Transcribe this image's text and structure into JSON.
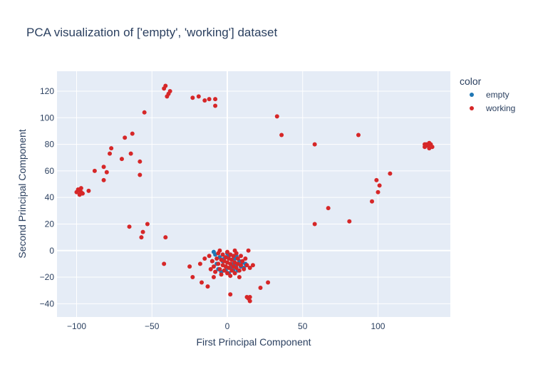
{
  "chart_data": {
    "type": "scatter",
    "title": "PCA visualization of ['empty', 'working'] dataset",
    "xlabel": "First Principal Component",
    "ylabel": "Second Principal Component",
    "xlim": [
      -113,
      148
    ],
    "ylim": [
      -50,
      135
    ],
    "xticks": [
      -100,
      -50,
      0,
      50,
      100
    ],
    "xtick_labels": [
      "−100",
      "−50",
      "0",
      "50",
      "100"
    ],
    "yticks": [
      -40,
      -20,
      0,
      20,
      40,
      60,
      80,
      100,
      120
    ],
    "ytick_labels": [
      "−40",
      "−20",
      "0",
      "20",
      "40",
      "60",
      "80",
      "100",
      "120"
    ],
    "grid": true,
    "legend": {
      "title": "color",
      "placement": "right"
    },
    "colors": {
      "plot_bg": "#e5ecf6",
      "grid": "#ffffff",
      "text": "#2a3f5f"
    },
    "series": [
      {
        "name": "empty",
        "color": "#1f77b4",
        "points": [
          [
            -9,
            -1
          ],
          [
            -8,
            -3
          ],
          [
            -5,
            -5
          ],
          [
            -3,
            -8
          ],
          [
            -1,
            -12
          ],
          [
            0,
            -9
          ],
          [
            1,
            -4
          ],
          [
            2,
            -13
          ],
          [
            3,
            -7
          ],
          [
            4,
            -10
          ],
          [
            5,
            -6
          ],
          [
            6,
            -11
          ],
          [
            7,
            -15
          ],
          [
            8,
            -8
          ],
          [
            9,
            -12
          ],
          [
            10,
            -9
          ],
          [
            11,
            -13
          ],
          [
            -6,
            -14
          ],
          [
            -4,
            -16
          ],
          [
            -2,
            -6
          ],
          [
            0,
            -2
          ],
          [
            2,
            -3
          ],
          [
            4,
            -15
          ],
          [
            6,
            -4
          ],
          [
            -7,
            -10
          ],
          [
            12,
            -10
          ],
          [
            -10,
            -8
          ],
          [
            1,
            -17
          ],
          [
            3,
            -11
          ],
          [
            -1,
            -15
          ]
        ]
      },
      {
        "name": "working",
        "color": "#d62728",
        "points": [
          [
            -42,
            122
          ],
          [
            -41,
            124
          ],
          [
            -40,
            116
          ],
          [
            -39,
            118
          ],
          [
            -38,
            120
          ],
          [
            -23,
            115
          ],
          [
            -19,
            116
          ],
          [
            -15,
            113
          ],
          [
            -12,
            114
          ],
          [
            -8,
            114
          ],
          [
            -8,
            109
          ],
          [
            -55,
            104
          ],
          [
            -63,
            88
          ],
          [
            -68,
            85
          ],
          [
            -77,
            77
          ],
          [
            -78,
            73
          ],
          [
            -64,
            73
          ],
          [
            -58,
            67
          ],
          [
            -70,
            69
          ],
          [
            -82,
            63
          ],
          [
            -88,
            60
          ],
          [
            -80,
            59
          ],
          [
            -82,
            53
          ],
          [
            -58,
            57
          ],
          [
            -100,
            44
          ],
          [
            -99,
            46
          ],
          [
            -98,
            45
          ],
          [
            -98,
            42
          ],
          [
            -97,
            44
          ],
          [
            -97,
            47
          ],
          [
            -96,
            43
          ],
          [
            -92,
            45
          ],
          [
            -65,
            18
          ],
          [
            -53,
            20
          ],
          [
            -56,
            14
          ],
          [
            -57,
            10
          ],
          [
            -41,
            10
          ],
          [
            -42,
            -10
          ],
          [
            33,
            101
          ],
          [
            36,
            87
          ],
          [
            58,
            80
          ],
          [
            87,
            87
          ],
          [
            131,
            78
          ],
          [
            132,
            80
          ],
          [
            133,
            79
          ],
          [
            134,
            81
          ],
          [
            134,
            77
          ],
          [
            135,
            80
          ],
          [
            136,
            78
          ],
          [
            131,
            80
          ],
          [
            108,
            58
          ],
          [
            99,
            53
          ],
          [
            101,
            49
          ],
          [
            100,
            44
          ],
          [
            96,
            37
          ],
          [
            67,
            32
          ],
          [
            81,
            22
          ],
          [
            58,
            20
          ],
          [
            -25,
            -12
          ],
          [
            -23,
            -20
          ],
          [
            -17,
            -24
          ],
          [
            -13,
            -27
          ],
          [
            -18,
            -10
          ],
          [
            -15,
            -6
          ],
          [
            -10,
            -8
          ],
          [
            -9,
            -12
          ],
          [
            -8,
            -16
          ],
          [
            -7,
            -6
          ],
          [
            -6,
            -2
          ],
          [
            -6,
            -10
          ],
          [
            -5,
            -14
          ],
          [
            -4,
            -7
          ],
          [
            -4,
            -18
          ],
          [
            -3,
            -3
          ],
          [
            -3,
            -11
          ],
          [
            -2,
            -8
          ],
          [
            -2,
            -15
          ],
          [
            -1,
            -5
          ],
          [
            -1,
            -12
          ],
          [
            0,
            -1
          ],
          [
            0,
            -9
          ],
          [
            0,
            -17
          ],
          [
            1,
            -6
          ],
          [
            1,
            -13
          ],
          [
            2,
            -3
          ],
          [
            2,
            -10
          ],
          [
            2,
            -19
          ],
          [
            3,
            -7
          ],
          [
            3,
            -15
          ],
          [
            4,
            -4
          ],
          [
            4,
            -12
          ],
          [
            5,
            -9
          ],
          [
            5,
            -17
          ],
          [
            6,
            -2
          ],
          [
            6,
            -13
          ],
          [
            7,
            -6
          ],
          [
            7,
            -10
          ],
          [
            8,
            -15
          ],
          [
            9,
            -4
          ],
          [
            9,
            -11
          ],
          [
            10,
            -8
          ],
          [
            11,
            -14
          ],
          [
            12,
            -6
          ],
          [
            13,
            -11
          ],
          [
            -11,
            -14
          ],
          [
            -12,
            -4
          ],
          [
            14,
            0
          ],
          [
            15,
            -13
          ],
          [
            17,
            -11
          ],
          [
            -5,
            0
          ],
          [
            5,
            0
          ],
          [
            -9,
            -20
          ],
          [
            8,
            -20
          ],
          [
            2,
            -33
          ],
          [
            13,
            -35
          ],
          [
            14,
            -36
          ],
          [
            15,
            -38
          ],
          [
            15,
            -35
          ],
          [
            22,
            -28
          ],
          [
            27,
            -24
          ]
        ]
      }
    ]
  }
}
